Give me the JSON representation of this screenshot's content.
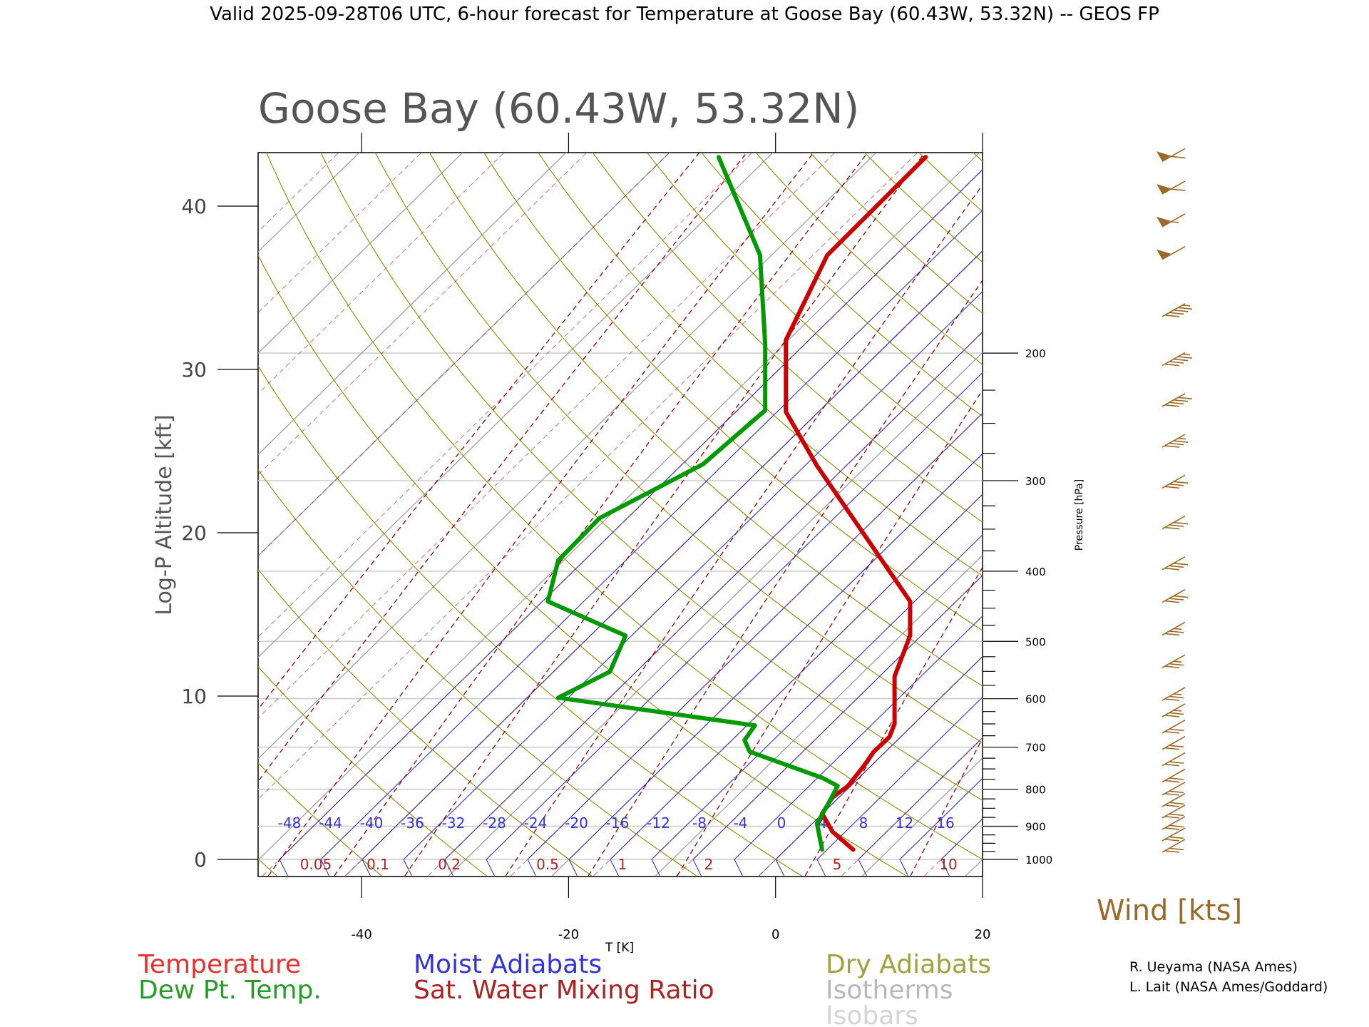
{
  "header": "Valid 2025-09-28T06 UTC, 6-hour forecast for Temperature at Goose Bay (60.43W, 53.32N) -- GEOS FP",
  "chart_data": {
    "type": "line",
    "subtype": "skew-T log-P diagram",
    "title": "Goose Bay (60.43W, 53.32N)",
    "xlabel": "T [K]",
    "ylabel": "Log-P Altitude [kft]",
    "y2label": "Pressure [hPa]",
    "xlim": [
      -50,
      20
    ],
    "ylim": [
      -1,
      43
    ],
    "x_ticks": [
      -40,
      -20,
      0,
      20
    ],
    "y_ticks": [
      0,
      10,
      20,
      30,
      40
    ],
    "pressure_ticks": [
      1000,
      900,
      800,
      700,
      600,
      500,
      400,
      300,
      200
    ],
    "moist_adiabat_labels": [
      "-48",
      "-44",
      "-40",
      "-36",
      "-32",
      "-28",
      "-24",
      "-20",
      "-16",
      "-12",
      "-8",
      "-4",
      "0",
      "4",
      "8",
      "12",
      "16"
    ],
    "mixing_ratio_labels": [
      "0.05",
      "0.1",
      "0.2",
      "0.5",
      "1",
      "2",
      "5",
      "10"
    ],
    "series": [
      {
        "name": "Temperature",
        "color": "#cc0000",
        "points": [
          [
            7.5,
            0.6
          ],
          [
            5.5,
            1.7
          ],
          [
            4.5,
            2.8
          ],
          [
            5.5,
            3.8
          ],
          [
            7,
            4.5
          ],
          [
            8.5,
            5.7
          ],
          [
            9.5,
            6.6
          ],
          [
            11,
            7.5
          ],
          [
            11.5,
            8.3
          ],
          [
            11.5,
            11.2
          ],
          [
            13,
            13.7
          ],
          [
            13,
            15.8
          ],
          [
            4,
            24.1
          ],
          [
            1,
            27.4
          ],
          [
            1,
            31.8
          ],
          [
            5,
            37.0
          ],
          [
            14.5,
            43.0
          ]
        ]
      },
      {
        "name": "Dew Pt. Temp.",
        "color": "#009900",
        "points": [
          [
            4.5,
            0.6
          ],
          [
            4,
            2.2
          ],
          [
            5,
            3.3
          ],
          [
            6,
            4.5
          ],
          [
            4.5,
            5.0
          ],
          [
            -2.5,
            6.6
          ],
          [
            -3,
            7.3
          ],
          [
            -2,
            8.2
          ],
          [
            -21,
            9.9
          ],
          [
            -16,
            11.5
          ],
          [
            -14.5,
            13.7
          ],
          [
            -22,
            15.8
          ],
          [
            -21,
            18.3
          ],
          [
            -17,
            20.9
          ],
          [
            -7,
            24.2
          ],
          [
            -1,
            27.5
          ],
          [
            -1,
            31.5
          ],
          [
            -1.5,
            37.0
          ],
          [
            -5.5,
            43.0
          ]
        ]
      }
    ],
    "wind_kts_label": "Wind [kts]",
    "wind_barbs": [
      {
        "alt": 43,
        "kts": 60
      },
      {
        "alt": 41,
        "kts": 60
      },
      {
        "alt": 39,
        "kts": 55
      },
      {
        "alt": 37,
        "kts": 50
      },
      {
        "alt": 33.5,
        "kts": 45
      },
      {
        "alt": 30.5,
        "kts": 45
      },
      {
        "alt": 28,
        "kts": 40
      },
      {
        "alt": 25.5,
        "kts": 35
      },
      {
        "alt": 23,
        "kts": 30
      },
      {
        "alt": 20.5,
        "kts": 30
      },
      {
        "alt": 18,
        "kts": 30
      },
      {
        "alt": 16,
        "kts": 30
      },
      {
        "alt": 14,
        "kts": 25
      },
      {
        "alt": 12,
        "kts": 25
      },
      {
        "alt": 10,
        "kts": 25
      },
      {
        "alt": 9,
        "kts": 25
      },
      {
        "alt": 8,
        "kts": 20
      },
      {
        "alt": 7,
        "kts": 20
      },
      {
        "alt": 6,
        "kts": 20
      },
      {
        "alt": 5,
        "kts": 20
      },
      {
        "alt": 4.2,
        "kts": 20
      },
      {
        "alt": 3.5,
        "kts": 20
      },
      {
        "alt": 2.8,
        "kts": 20
      },
      {
        "alt": 2.1,
        "kts": 20
      },
      {
        "alt": 1.4,
        "kts": 20
      },
      {
        "alt": 0.7,
        "kts": 20
      }
    ]
  },
  "legend": {
    "temperature": "Temperature",
    "dewpoint": "Dew Pt. Temp.",
    "moist": "Moist Adiabats",
    "mixing": "Sat. Water Mixing Ratio",
    "dry": "Dry Adiabats",
    "isotherms": "Isotherms",
    "isobars": "Isobars"
  },
  "credits": {
    "line1": "R. Ueyama (NASA Ames)",
    "line2": "L. Lait (NASA Ames/Goddard)"
  },
  "colors": {
    "temperature": "#cc0000",
    "dewpoint": "#009900",
    "moist": "#3333dd",
    "mixing": "#990000",
    "dry": "#8a8a00",
    "isotherm": "#999999",
    "isobar": "#cccccc",
    "wind": "#9a6a2a"
  }
}
